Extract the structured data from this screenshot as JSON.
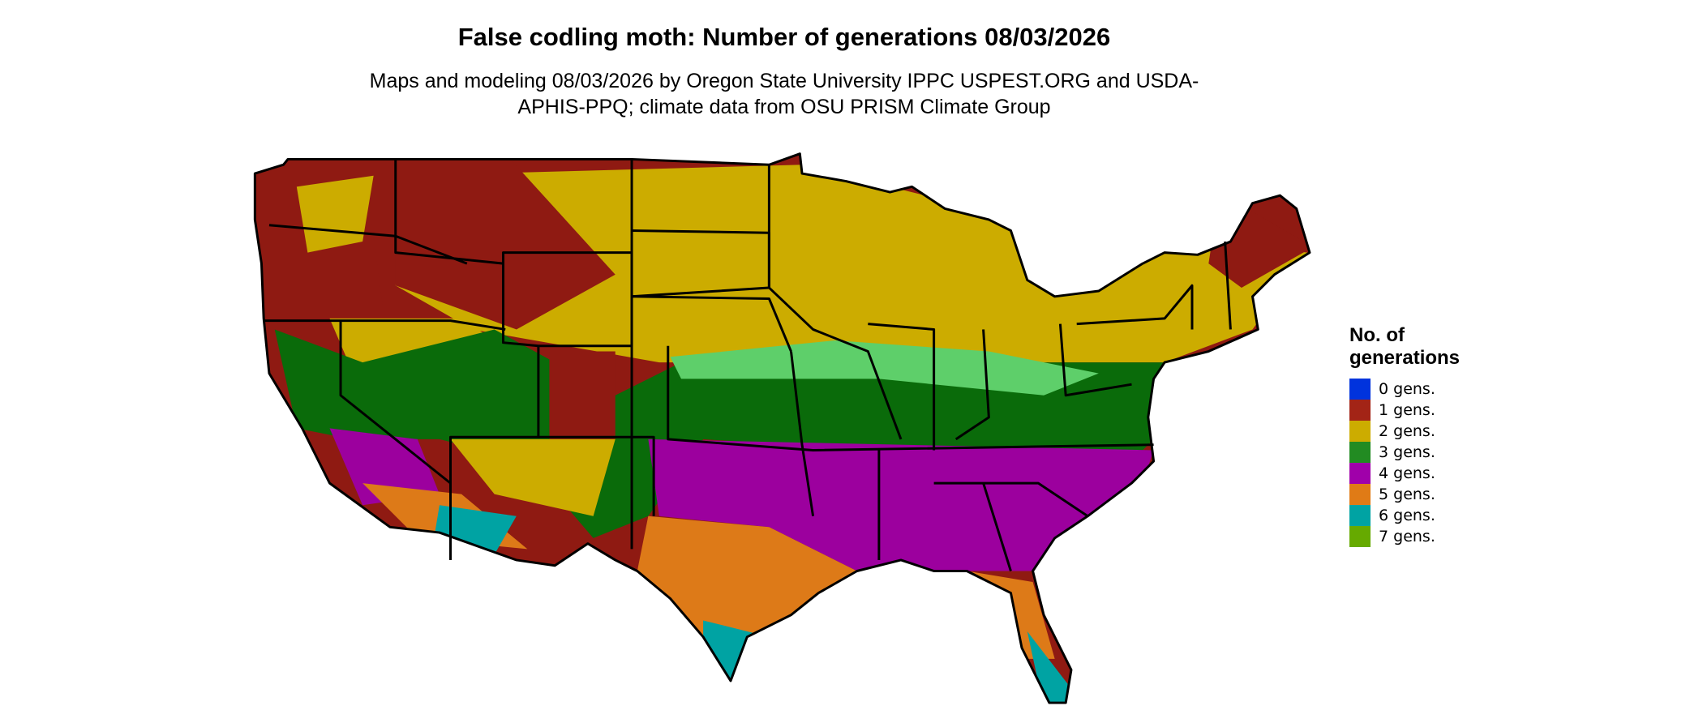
{
  "title": "False codling moth: Number of generations 08/03/2026",
  "subtitle": "Maps and modeling 08/03/2026 by Oregon State University IPPC USPEST.ORG and USDA-APHIS-PPQ; climate data from OSU PRISM Climate Group",
  "legend": {
    "title": "No. of generations",
    "items": [
      {
        "label": "0 gens.",
        "color": "#0033dd"
      },
      {
        "label": "1 gens.",
        "color": "#a32416"
      },
      {
        "label": "2 gens.",
        "color": "#ccac00"
      },
      {
        "label": "3 gens.",
        "color": "#228b22"
      },
      {
        "label": "4 gens.",
        "color": "#a000aa"
      },
      {
        "label": "5 gens.",
        "color": "#e07b16"
      },
      {
        "label": "6 gens.",
        "color": "#00a3a3"
      },
      {
        "label": "7 gens.",
        "color": "#66aa00"
      }
    ]
  }
}
